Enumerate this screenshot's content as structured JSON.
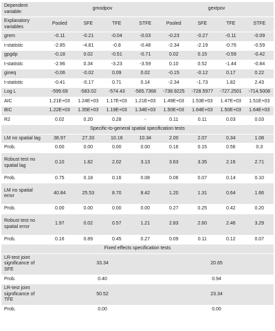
{
  "table": {
    "head": {
      "dependent_label": "Dependent variable:",
      "groups": [
        "gmodpov",
        "gextpov"
      ],
      "explanatory_label": "Explanatory variables",
      "columns": [
        "Pooled",
        "SFE",
        "TFE",
        "STFE",
        "Pooled",
        "SFE",
        "TFE",
        "STFE"
      ]
    },
    "estimates": [
      {
        "label": "grem",
        "values": [
          "-0.11",
          "-0.21",
          "-0.04",
          "-0.03",
          "-0.23",
          "-0.27",
          "-0.11",
          "-0.09"
        ]
      },
      {
        "label": "t-statistic",
        "values": [
          "-2.85",
          "-4.81",
          "-0.8",
          "-0.48",
          "-2.34",
          "-2.19",
          "-0.76",
          "-0.59"
        ]
      },
      {
        "label": "gpgdp",
        "values": [
          "-0.18",
          "0.02",
          "-0.51",
          "-0.71",
          "0.02",
          "0.15",
          "-0.59",
          "-0.42"
        ]
      },
      {
        "label": "t-statistic",
        "values": [
          "-2.96",
          "0.34",
          "-3.23",
          "-3.59",
          "0.10",
          "0.52",
          "-1.44",
          "-0.84"
        ]
      },
      {
        "label": "gineq",
        "values": [
          "-0.06",
          "-0.02",
          "0.09",
          "0.02",
          "-0.15",
          "-0.12",
          "0.17",
          "0.22"
        ]
      },
      {
        "label": "t-statistic",
        "values": [
          "-0.41",
          "-0.17",
          "0.71",
          "0.14",
          "-2.34",
          "-1.73",
          "1.82",
          "2.43"
        ]
      },
      {
        "label": "Log L",
        "values": [
          "-599.69",
          "-583.02",
          "-574.43",
          "-565.7368",
          "-738.9225",
          "-728.5977",
          "-727.2501",
          "-714.5008"
        ]
      },
      {
        "label": "AIC",
        "values": [
          "1.21E+03",
          "1.24E+03",
          "1.17E+03",
          "1.21E+03",
          "1.49E+03",
          "1.53E+03",
          "1.47E+03",
          "1.51E+03"
        ]
      },
      {
        "label": "BIC",
        "values": [
          "1.22E+03",
          "1.35E+03",
          "1.19E+03",
          "1.34E+03",
          "1.50E+03",
          "1.64E+03",
          "1.50E+03",
          "1.64E+03"
        ]
      },
      {
        "label": "R2",
        "values": [
          "0.02",
          "0.20",
          "0.28",
          "-",
          "0.11",
          "0.11",
          "0.03",
          "0.03"
        ]
      }
    ],
    "spatial_title": "Specific-to-general spatial specification tests",
    "spatial_tests": [
      {
        "label": "LM no spatial lag",
        "values": [
          "38.97",
          "27.33",
          "10.16",
          "10.34",
          "2.00",
          "2.07",
          "0.34",
          "1.08"
        ]
      },
      {
        "label": "Prob.",
        "values": [
          "0.00",
          "0.00",
          "0.00",
          "0.00",
          "0.16",
          "0.15",
          "0.56",
          "0.3"
        ]
      },
      {
        "label": "Robust test no spatial lag",
        "values": [
          "0.10",
          "1.82",
          "2.02",
          "3.13",
          "3.63",
          "3.35",
          "2.16",
          "2.71"
        ]
      },
      {
        "label": "Prob.",
        "values": [
          "0.75",
          "0.18",
          "0.16",
          "0.08",
          "0.06",
          "0.07",
          "0.14",
          "0.10"
        ]
      },
      {
        "label": "LM no spatial error",
        "values": [
          "40.84",
          "25.53",
          "8.70",
          "8.42",
          "1.20",
          "1.31",
          "0.64",
          "1.66"
        ]
      },
      {
        "label": "Prob.",
        "values": [
          "0.00",
          "0.00",
          "0.00",
          "0.00",
          "0.27",
          "0.25",
          "0.42",
          "0.20"
        ]
      },
      {
        "label": "Robust test no spatial error",
        "values": [
          "1.97",
          "0.02",
          "0.57",
          "1.21",
          "2.83",
          "2.60",
          "2.46",
          "3.29"
        ]
      },
      {
        "label": "Prob.",
        "values": [
          "0.16",
          "0.89",
          "0.45",
          "0.27",
          "0.09",
          "0.11",
          "0.12",
          "0.07"
        ]
      }
    ],
    "fixed_title": "Fixed effects specification tests",
    "fixed_tests": [
      {
        "label": "LR-test joint significance of SFE",
        "values": [
          "33.34",
          "20.65"
        ]
      },
      {
        "label": "Prob.",
        "values": [
          "0.40",
          "0.94"
        ]
      },
      {
        "label": "LR-test joint significance of TFE",
        "values": [
          "50.52",
          "23.34"
        ]
      },
      {
        "label": "Prob.",
        "values": [
          "0.00",
          "0.00"
        ]
      }
    ]
  }
}
